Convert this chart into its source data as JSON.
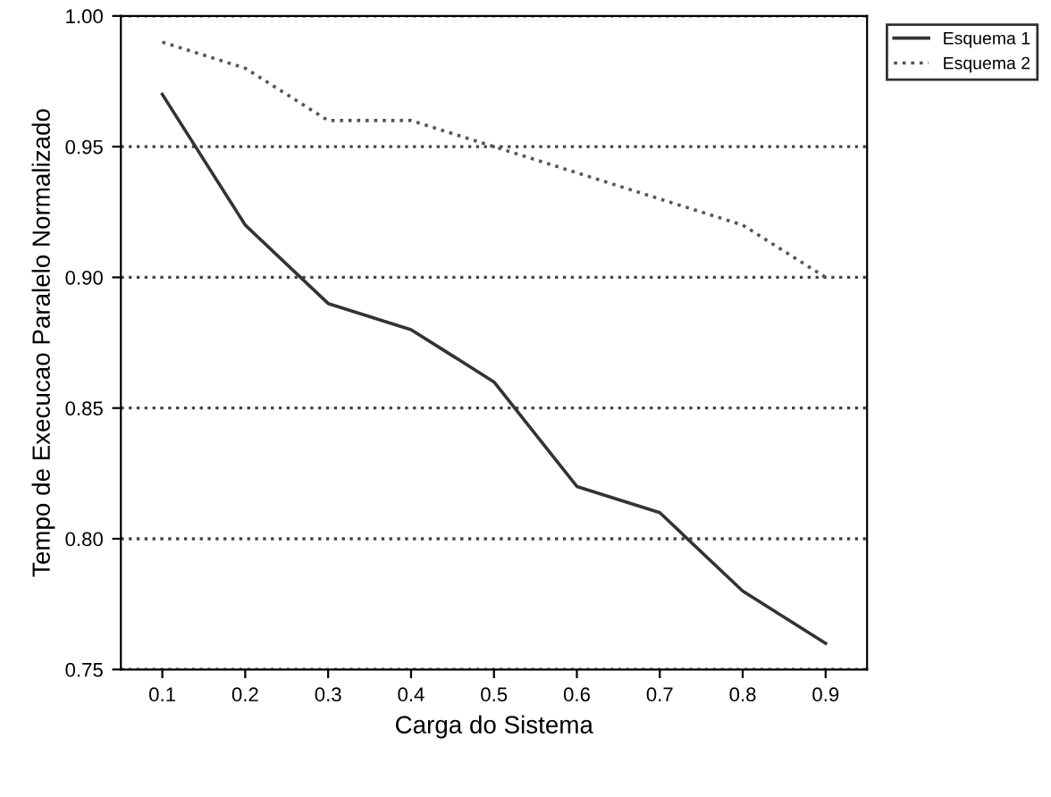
{
  "chart_data": {
    "type": "line",
    "xlabel": "Carga do Sistema",
    "ylabel": "Tempo de Execucao Paralelo Normalizado",
    "x": [
      0.1,
      0.2,
      0.3,
      0.4,
      0.5,
      0.6,
      0.7,
      0.8,
      0.9
    ],
    "series": [
      {
        "name": "Esquema 1",
        "color": "#333333",
        "line_style": "solid",
        "values": [
          0.97,
          0.92,
          0.89,
          0.88,
          0.86,
          0.82,
          0.81,
          0.78,
          0.76
        ]
      },
      {
        "name": "Esquema 2",
        "color": "#555555",
        "line_style": "dotted",
        "values": [
          0.99,
          0.98,
          0.96,
          0.96,
          0.95,
          0.94,
          0.93,
          0.92,
          0.9
        ]
      }
    ],
    "xlim": [
      0.05,
      0.95
    ],
    "xticks": [
      0.1,
      0.2,
      0.3,
      0.4,
      0.5,
      0.6,
      0.7,
      0.8,
      0.9
    ],
    "ylim": [
      0.75,
      1.0
    ],
    "yticks": [
      0.75,
      {
        "value": 0.8,
        "label": "0.80"
      },
      0.85,
      {
        "value": 0.9,
        "label": "0.90"
      },
      0.95,
      {
        "value": 1.0,
        "label": "1.00"
      }
    ],
    "grid": "y",
    "legend": "top right",
    "marker": "none"
  }
}
